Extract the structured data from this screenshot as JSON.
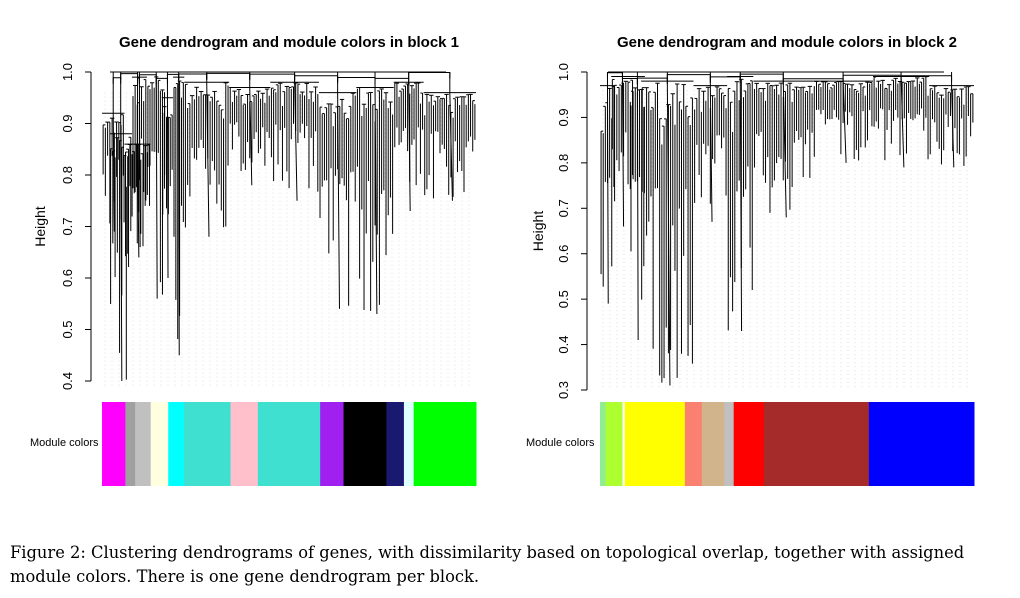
{
  "figure": {
    "panels": [
      {
        "title": "Gene dendrogram and module colors in block 1",
        "ylabel": "Height",
        "row_label": "Module colors",
        "ylim": [
          0.4,
          1.0
        ],
        "yticks": [
          "0.4",
          "0.5",
          "0.6",
          "0.7",
          "0.8",
          "0.9",
          "1.0"
        ],
        "branches": [
          {
            "start": 0.0,
            "end": 0.06,
            "top": 0.92,
            "bottom": 0.69
          },
          {
            "start": 0.02,
            "end": 0.08,
            "top": 0.88,
            "bottom": 0.4
          },
          {
            "start": 0.06,
            "end": 0.13,
            "top": 0.86,
            "bottom": 0.64
          },
          {
            "start": 0.08,
            "end": 0.12,
            "top": 0.99,
            "bottom": 0.66
          },
          {
            "start": 0.12,
            "end": 0.17,
            "top": 1.0,
            "bottom": 0.56
          },
          {
            "start": 0.16,
            "end": 0.19,
            "top": 0.95,
            "bottom": 0.6
          },
          {
            "start": 0.19,
            "end": 0.22,
            "top": 0.99,
            "bottom": 0.45
          },
          {
            "start": 0.22,
            "end": 0.34,
            "top": 0.98,
            "bottom": 0.68
          },
          {
            "start": 0.34,
            "end": 0.45,
            "top": 0.97,
            "bottom": 0.78
          },
          {
            "start": 0.45,
            "end": 0.58,
            "top": 0.98,
            "bottom": 0.75
          },
          {
            "start": 0.58,
            "end": 0.68,
            "top": 0.96,
            "bottom": 0.54
          },
          {
            "start": 0.68,
            "end": 0.78,
            "top": 0.97,
            "bottom": 0.53
          },
          {
            "start": 0.78,
            "end": 0.86,
            "top": 0.98,
            "bottom": 0.73
          },
          {
            "start": 0.86,
            "end": 1.0,
            "top": 0.96,
            "bottom": 0.75
          }
        ],
        "modules": [
          {
            "color": "#ff00ff",
            "width": 6
          },
          {
            "color": "#a0a0a0",
            "width": 2.5
          },
          {
            "color": "#c0c0c0",
            "width": 4
          },
          {
            "color": "#ffffe0",
            "width": 4.5
          },
          {
            "color": "#00ffff",
            "width": 4
          },
          {
            "color": "#40e0d0",
            "width": 12
          },
          {
            "color": "#ffc0cb",
            "width": 7
          },
          {
            "color": "#40e0d0",
            "width": 16
          },
          {
            "color": "#a020f0",
            "width": 6
          },
          {
            "color": "#000000",
            "width": 11
          },
          {
            "color": "#191970",
            "width": 4.5
          },
          {
            "color": "#e0ffff",
            "width": 2.5
          },
          {
            "color": "#00ff00",
            "width": 16
          }
        ]
      },
      {
        "title": "Gene dendrogram and module colors in block 2",
        "ylabel": "Height",
        "row_label": "Module colors",
        "ylim": [
          0.3,
          1.0
        ],
        "yticks": [
          "0.3",
          "0.4",
          "0.5",
          "0.6",
          "0.7",
          "0.8",
          "0.9",
          "1.0"
        ],
        "branches": [
          {
            "start": 0.0,
            "end": 0.04,
            "top": 0.97,
            "bottom": 0.49
          },
          {
            "start": 0.03,
            "end": 0.09,
            "top": 0.99,
            "bottom": 0.66
          },
          {
            "start": 0.08,
            "end": 0.12,
            "top": 0.99,
            "bottom": 0.41
          },
          {
            "start": 0.11,
            "end": 0.25,
            "top": 0.98,
            "bottom": 0.31
          },
          {
            "start": 0.25,
            "end": 0.34,
            "top": 0.97,
            "bottom": 0.67
          },
          {
            "start": 0.34,
            "end": 0.41,
            "top": 0.99,
            "bottom": 0.43
          },
          {
            "start": 0.41,
            "end": 0.57,
            "top": 0.98,
            "bottom": 0.68
          },
          {
            "start": 0.57,
            "end": 0.73,
            "top": 0.98,
            "bottom": 0.8
          },
          {
            "start": 0.73,
            "end": 0.88,
            "top": 0.99,
            "bottom": 0.79
          },
          {
            "start": 0.88,
            "end": 1.0,
            "top": 0.97,
            "bottom": 0.79
          }
        ],
        "modules": [
          {
            "color": "#90ee90",
            "width": 1.5
          },
          {
            "color": "#adff2f",
            "width": 4.5
          },
          {
            "color": "#ffffff",
            "width": 0.6
          },
          {
            "color": "#ffff00",
            "width": 16
          },
          {
            "color": "#fa8072",
            "width": 4.5
          },
          {
            "color": "#d2b48c",
            "width": 6
          },
          {
            "color": "#c0c0c0",
            "width": 2.5
          },
          {
            "color": "#ff0000",
            "width": 8
          },
          {
            "color": "#a52a2a",
            "width": 28
          },
          {
            "color": "#0000ff",
            "width": 28
          }
        ]
      }
    ]
  },
  "caption": "Figure 2: Clustering dendrograms of genes, with dissimilarity based on topological overlap, together with assigned module colors. There is one gene dendrogram per block."
}
